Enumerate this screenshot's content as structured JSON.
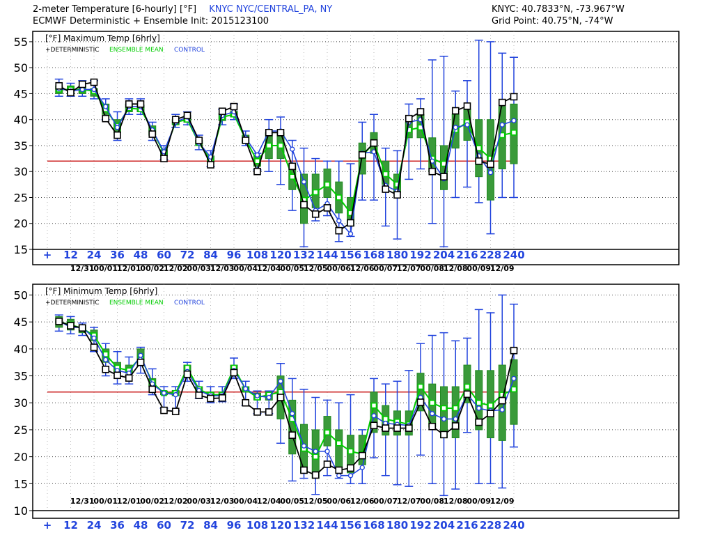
{
  "header": {
    "title": "2-meter Temperature [6-hourly] [°F]",
    "station": "KNYC NYC/CENTRAL_PA, NY",
    "model_line": "ECMWF Deterministic + Ensemble Init: 2015123100",
    "coord_line": "KNYC: 40.7833°N, -73.967°W",
    "grid_line": "Grid Point: 40.75°N, -74°W"
  },
  "colors": {
    "deterministic": "#000000",
    "ensemble_mean": "#00cc00",
    "control": "#2244dd",
    "box_fill": "#3a9a3a",
    "freezing": "#cc2222",
    "axis_label": "#2244dd"
  },
  "chart_data": [
    {
      "type": "line",
      "title": "[°F] Maximum Temp [6hrly]",
      "legend": [
        "+DETERMINISTIC",
        "ENSEMBLE MEAN",
        "CONTROL"
      ],
      "ylim": [
        15,
        57
      ],
      "yticks": [
        15,
        20,
        25,
        30,
        35,
        40,
        45,
        50,
        55
      ],
      "reference_line": 32,
      "x": [
        6,
        12,
        18,
        24,
        30,
        36,
        42,
        48,
        54,
        60,
        66,
        72,
        78,
        84,
        90,
        96,
        102,
        108,
        114,
        120,
        126,
        132,
        138,
        144,
        150,
        156,
        162,
        168,
        174,
        180,
        186,
        192,
        198,
        204,
        210,
        216,
        222,
        228,
        234,
        240
      ],
      "xticks": [
        "+",
        "12",
        "24",
        "36",
        "48",
        "60",
        "72",
        "84",
        "96",
        "108",
        "120",
        "132",
        "144",
        "156",
        "168",
        "180",
        "192",
        "204",
        "216",
        "228",
        "240"
      ],
      "date_labels": [
        "12/31",
        "00/01",
        "12/01",
        "00/02",
        "12/02",
        "00/03",
        "12/03",
        "00/04",
        "12/04",
        "00/05",
        "12/05",
        "00/06",
        "12/06",
        "00/07",
        "12/07",
        "00/08",
        "12/08",
        "00/09",
        "12/09"
      ],
      "series": [
        {
          "name": "DETERMINISTIC",
          "values": [
            46.5,
            45.2,
            46.8,
            47.2,
            40.2,
            37.0,
            43.0,
            43.0,
            37.2,
            32.5,
            40.0,
            40.8,
            36.0,
            31.3,
            41.6,
            42.5,
            36.0,
            30.0,
            37.5,
            37.5,
            31.0,
            23.6,
            21.8,
            23.0,
            18.6,
            20.1,
            33.2,
            35.5,
            26.6,
            25.5,
            40.2,
            41.5,
            30.0,
            29.0,
            41.7,
            42.6,
            32.0,
            31.4,
            43.3,
            44.4
          ]
        },
        {
          "name": "ENSEMBLE MEAN",
          "values": [
            45.8,
            45.8,
            45.8,
            45.5,
            42.0,
            38.8,
            42.2,
            42.0,
            38.0,
            33.5,
            39.5,
            40.0,
            35.5,
            32.2,
            40.5,
            41.0,
            36.2,
            32.0,
            35.0,
            35.0,
            29.0,
            24.5,
            26.0,
            27.5,
            25.0,
            22.0,
            33.0,
            35.5,
            29.5,
            27.5,
            38.0,
            38.5,
            32.5,
            31.5,
            38.0,
            39.5,
            34.5,
            32.5,
            37.0,
            37.5
          ]
        },
        {
          "name": "CONTROL",
          "values": [
            46.0,
            45.5,
            45.8,
            45.8,
            42.5,
            38.5,
            42.5,
            42.5,
            38.0,
            33.8,
            39.5,
            40.5,
            35.5,
            32.8,
            40.8,
            41.5,
            36.5,
            33.2,
            37.8,
            37.8,
            34.3,
            28.0,
            22.5,
            23.8,
            20.5,
            18.0,
            33.5,
            33.8,
            27.3,
            26.2,
            39.5,
            40.0,
            32.0,
            28.6,
            38.5,
            39.0,
            33.0,
            29.8,
            39.0,
            39.8
          ]
        }
      ],
      "box_low": [
        45.0,
        45.0,
        45.0,
        44.5,
        41.0,
        37.5,
        41.5,
        41.5,
        37.0,
        33.0,
        39.0,
        39.5,
        35.0,
        31.8,
        39.8,
        40.5,
        35.5,
        31.0,
        32.5,
        32.5,
        26.5,
        20.0,
        23.0,
        25.0,
        22.0,
        19.5,
        29.5,
        33.5,
        27.5,
        26.0,
        36.5,
        36.5,
        30.0,
        26.5,
        34.5,
        36.0,
        29.0,
        24.5,
        30.5,
        31.5
      ],
      "box_high": [
        46.5,
        46.5,
        46.5,
        46.0,
        43.0,
        40.0,
        43.0,
        42.8,
        38.8,
        34.2,
        40.0,
        40.8,
        36.0,
        33.0,
        41.2,
        41.6,
        37.0,
        33.0,
        37.5,
        37.5,
        31.5,
        29.5,
        29.5,
        30.5,
        28.0,
        25.0,
        35.5,
        37.5,
        32.0,
        29.5,
        39.5,
        41.0,
        36.5,
        35.0,
        41.0,
        42.0,
        40.0,
        40.0,
        42.5,
        43.0
      ],
      "whisker_low": [
        44.5,
        44.5,
        44.5,
        44.0,
        40.0,
        36.0,
        41.0,
        41.0,
        36.0,
        32.3,
        38.5,
        39.0,
        34.2,
        31.0,
        39.0,
        40.0,
        35.0,
        30.3,
        30.0,
        27.5,
        22.5,
        15.5,
        20.5,
        21.5,
        16.5,
        17.5,
        24.5,
        24.5,
        19.5,
        17.0,
        28.5,
        30.5,
        20.0,
        15.5,
        25.0,
        27.0,
        24.0,
        18.0,
        25.0,
        25.0
      ],
      "whisker_high": [
        47.8,
        47.0,
        47.5,
        47.5,
        44.0,
        41.5,
        44.0,
        44.0,
        39.5,
        35.0,
        41.0,
        41.5,
        37.0,
        34.0,
        42.0,
        43.0,
        37.8,
        33.5,
        40.0,
        40.5,
        36.0,
        34.5,
        32.5,
        32.0,
        32.0,
        31.5,
        39.5,
        41.0,
        34.5,
        34.0,
        43.0,
        44.0,
        51.5,
        52.2,
        45.5,
        47.5,
        55.3,
        55.0,
        52.8,
        52.0
      ]
    },
    {
      "type": "line",
      "title": "[°F] Minimum Temp [6hrly]",
      "legend": [
        "+DETERMINISTIC",
        "ENSEMBLE MEAN",
        "CONTROL"
      ],
      "ylim": [
        10,
        52
      ],
      "yticks": [
        10,
        15,
        20,
        25,
        30,
        35,
        40,
        45,
        50
      ],
      "reference_line": 32,
      "x": [
        6,
        12,
        18,
        24,
        30,
        36,
        42,
        48,
        54,
        60,
        66,
        72,
        78,
        84,
        90,
        96,
        102,
        108,
        114,
        120,
        126,
        132,
        138,
        144,
        150,
        156,
        162,
        168,
        174,
        180,
        186,
        192,
        198,
        204,
        210,
        216,
        222,
        228,
        234,
        240
      ],
      "xticks": [
        "+",
        "12",
        "24",
        "36",
        "48",
        "60",
        "72",
        "84",
        "96",
        "108",
        "120",
        "132",
        "144",
        "156",
        "168",
        "180",
        "192",
        "204",
        "216",
        "228",
        "240"
      ],
      "date_labels": [
        "12/31",
        "00/01",
        "12/01",
        "00/02",
        "12/02",
        "00/03",
        "12/03",
        "00/04",
        "12/04",
        "00/05",
        "12/05",
        "00/06",
        "12/06",
        "00/07",
        "12/07",
        "00/08",
        "12/08",
        "00/09",
        "12/09"
      ],
      "series": [
        {
          "name": "DETERMINISTIC",
          "values": [
            45.1,
            44.3,
            43.9,
            40.3,
            36.2,
            35.1,
            34.6,
            37.5,
            32.5,
            28.6,
            28.4,
            35.3,
            31.4,
            30.8,
            30.9,
            35.6,
            30.0,
            28.3,
            28.3,
            31.0,
            24.0,
            17.5,
            16.6,
            18.6,
            17.5,
            17.9,
            20.2,
            25.8,
            25.3,
            25.3,
            25.3,
            30.1,
            25.6,
            24.1,
            25.7,
            31.6,
            26.4,
            28.0,
            30.4,
            39.7
          ]
        },
        {
          "name": "ENSEMBLE MEAN",
          "values": [
            45.0,
            44.5,
            43.8,
            42.5,
            39.0,
            36.5,
            36.0,
            38.5,
            33.8,
            31.8,
            31.8,
            36.5,
            32.5,
            31.5,
            31.5,
            36.5,
            32.5,
            31.0,
            31.5,
            32.0,
            27.0,
            21.5,
            20.0,
            24.5,
            22.5,
            21.0,
            20.5,
            29.5,
            27.0,
            26.5,
            26.0,
            33.0,
            30.0,
            29.0,
            29.0,
            33.0,
            30.0,
            29.5,
            31.5,
            32.5
          ]
        },
        {
          "name": "CONTROL",
          "values": [
            45.2,
            44.0,
            44.0,
            42.0,
            38.0,
            36.0,
            35.5,
            38.8,
            33.5,
            31.8,
            31.5,
            35.8,
            32.3,
            31.3,
            31.3,
            36.0,
            32.6,
            31.3,
            31.0,
            34.0,
            28.0,
            22.0,
            21.0,
            21.0,
            16.5,
            16.5,
            18.0,
            27.6,
            26.2,
            26.0,
            25.8,
            31.0,
            28.0,
            27.0,
            27.0,
            31.6,
            29.0,
            28.5,
            28.7,
            34.5
          ]
        }
      ],
      "box_low": [
        44.0,
        43.5,
        43.0,
        41.5,
        37.5,
        35.5,
        35.5,
        37.0,
        33.0,
        31.5,
        31.3,
        35.5,
        32.0,
        31.0,
        31.0,
        35.5,
        32.0,
        30.5,
        30.5,
        27.0,
        20.5,
        17.0,
        16.0,
        22.0,
        18.0,
        17.0,
        18.5,
        24.5,
        24.0,
        24.0,
        24.0,
        28.5,
        25.5,
        23.5,
        23.5,
        30.0,
        25.0,
        23.5,
        23.0,
        26.0
      ],
      "box_high": [
        46.0,
        45.5,
        44.5,
        43.5,
        40.0,
        37.5,
        37.0,
        40.0,
        34.5,
        32.2,
        32.3,
        37.0,
        33.0,
        32.0,
        32.0,
        37.0,
        33.0,
        31.8,
        32.0,
        35.0,
        30.5,
        26.0,
        25.0,
        27.5,
        25.0,
        24.0,
        24.0,
        32.0,
        29.5,
        28.5,
        28.5,
        35.5,
        33.5,
        33.0,
        33.0,
        37.0,
        36.0,
        36.0,
        37.0,
        38.0
      ],
      "whisker_low": [
        43.3,
        42.8,
        42.5,
        39.5,
        35.0,
        33.5,
        33.5,
        35.5,
        31.5,
        29.0,
        28.5,
        34.0,
        30.8,
        30.0,
        30.2,
        34.5,
        29.5,
        28.0,
        28.0,
        22.5,
        15.5,
        16.0,
        13.0,
        16.5,
        16.0,
        15.0,
        15.0,
        19.8,
        16.5,
        14.8,
        14.5,
        20.3,
        15.0,
        12.8,
        14.0,
        24.5,
        15.0,
        15.0,
        14.2,
        21.8
      ],
      "whisker_high": [
        46.3,
        46.0,
        44.8,
        44.0,
        41.0,
        39.5,
        38.5,
        40.3,
        36.3,
        33.0,
        33.0,
        37.5,
        34.0,
        33.0,
        33.0,
        38.3,
        34.0,
        32.2,
        32.2,
        37.3,
        34.5,
        32.5,
        31.0,
        30.5,
        30.0,
        31.5,
        25.0,
        34.5,
        33.5,
        34.0,
        36.0,
        41.0,
        42.5,
        43.0,
        41.5,
        42.0,
        47.3,
        46.7,
        50.0,
        48.3
      ]
    }
  ]
}
